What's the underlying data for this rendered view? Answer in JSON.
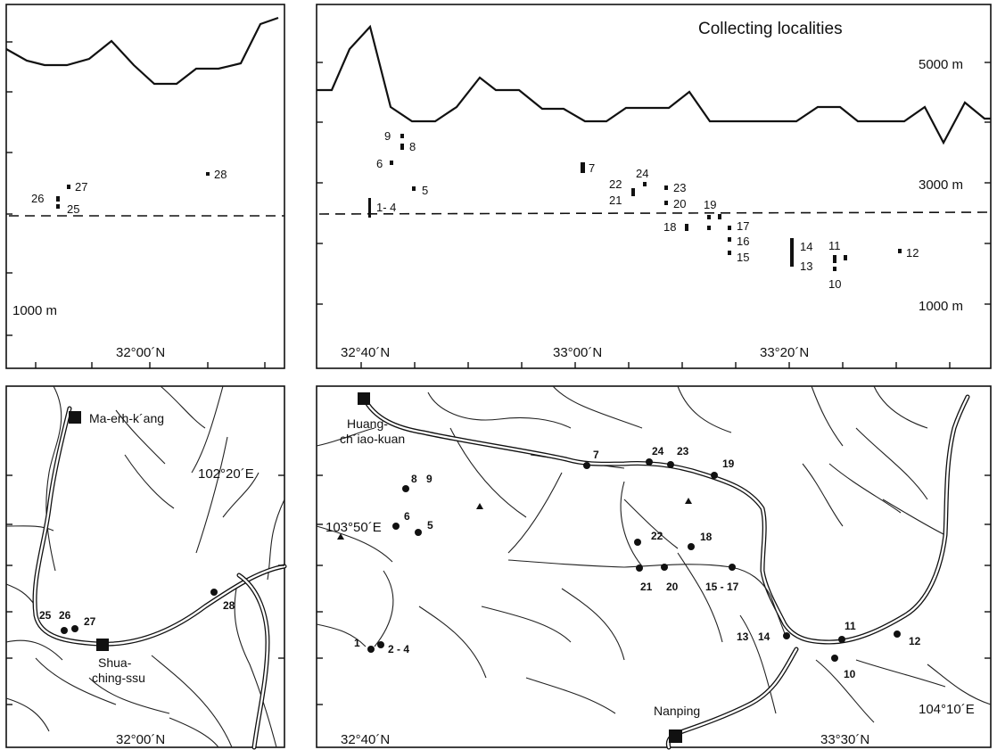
{
  "title": "Collecting localities",
  "altitude_labels": {
    "a5000": "5000 m",
    "a3000": "3000 m",
    "a1000_right": "1000 m",
    "a1000_left": "1000 m"
  },
  "profile_axes": {
    "left_lat": "32°00´N",
    "lat1": "32°40´N",
    "lat2": "33°00´N",
    "lat3": "33°20´N"
  },
  "map_axes": {
    "left_lat": "32°00´N",
    "left_lon": "102°20´E",
    "lat1": "32°40´N",
    "lat2": "33°30´N",
    "lon_mid": "103°50´E",
    "lon_right": "104°10´E"
  },
  "towns": {
    "maerhkang": "Ma-erh-k´ang",
    "shua1": "Shua-",
    "shua2": "ching-ssu",
    "huang1": "Huang-",
    "huang2": "ch´iao-kuan",
    "nanping": "Nanping"
  },
  "profile_labels": {
    "p26": "26",
    "p27": "27",
    "p25": "25",
    "p28": "28",
    "p9": "9",
    "p8": "8",
    "p6": "6",
    "p5": "5",
    "p1_4": "1- 4",
    "p7": "7",
    "p22": "22",
    "p24": "24",
    "p21": "21",
    "p23": "23",
    "p20": "20",
    "p19": "19",
    "p18": "18",
    "p17": "17",
    "p16": "16",
    "p15": "15",
    "p14": "14",
    "p13": "13",
    "p11": "11",
    "p10": "10",
    "p12": "12"
  },
  "map_labels": {
    "m25": "25",
    "m26": "26",
    "m27": "27",
    "m28": "28",
    "m8": "8",
    "m9": "9",
    "m6": "6",
    "m5": "5",
    "m1": "1",
    "m2_4": "2 - 4",
    "m7": "7",
    "m24": "24",
    "m23": "23",
    "m19": "19",
    "m22": "22",
    "m18": "18",
    "m21": "21",
    "m20": "20",
    "m15_17": "15 - 17",
    "m13": "13",
    "m14": "14",
    "m11": "11",
    "m10": "10",
    "m12": "12"
  },
  "icons": [
    "town-square-icon",
    "peak-triangle-icon",
    "locality-dot-icon"
  ]
}
